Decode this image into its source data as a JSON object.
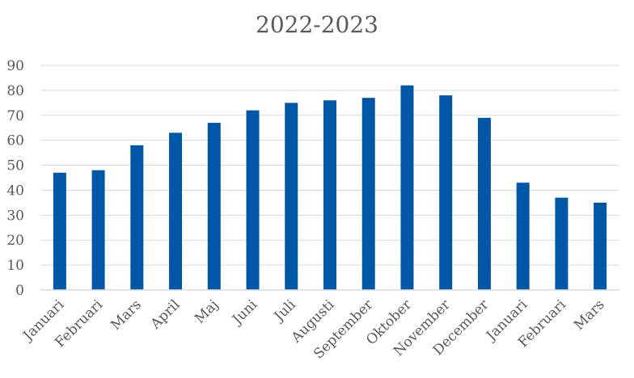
{
  "chart_data": {
    "type": "bar",
    "title": "2022-2023",
    "xlabel": "",
    "ylabel": "",
    "categories": [
      "Januari",
      "Februari",
      "Mars",
      "April",
      "Maj",
      "Juni",
      "Juli",
      "Augusti",
      "September",
      "Oktober",
      "November",
      "December",
      "Januari",
      "Februari",
      "Mars"
    ],
    "values": [
      47,
      48,
      58,
      63,
      67,
      72,
      75,
      76,
      77,
      82,
      78,
      69,
      43,
      37,
      35
    ],
    "ylim": [
      0,
      90
    ],
    "yticks": [
      0,
      10,
      20,
      30,
      40,
      50,
      60,
      70,
      80,
      90
    ],
    "grid": true,
    "legend": "none",
    "bar_color": "#0057A8",
    "grid_color": "#D9D9D9",
    "text_color": "#595959"
  }
}
